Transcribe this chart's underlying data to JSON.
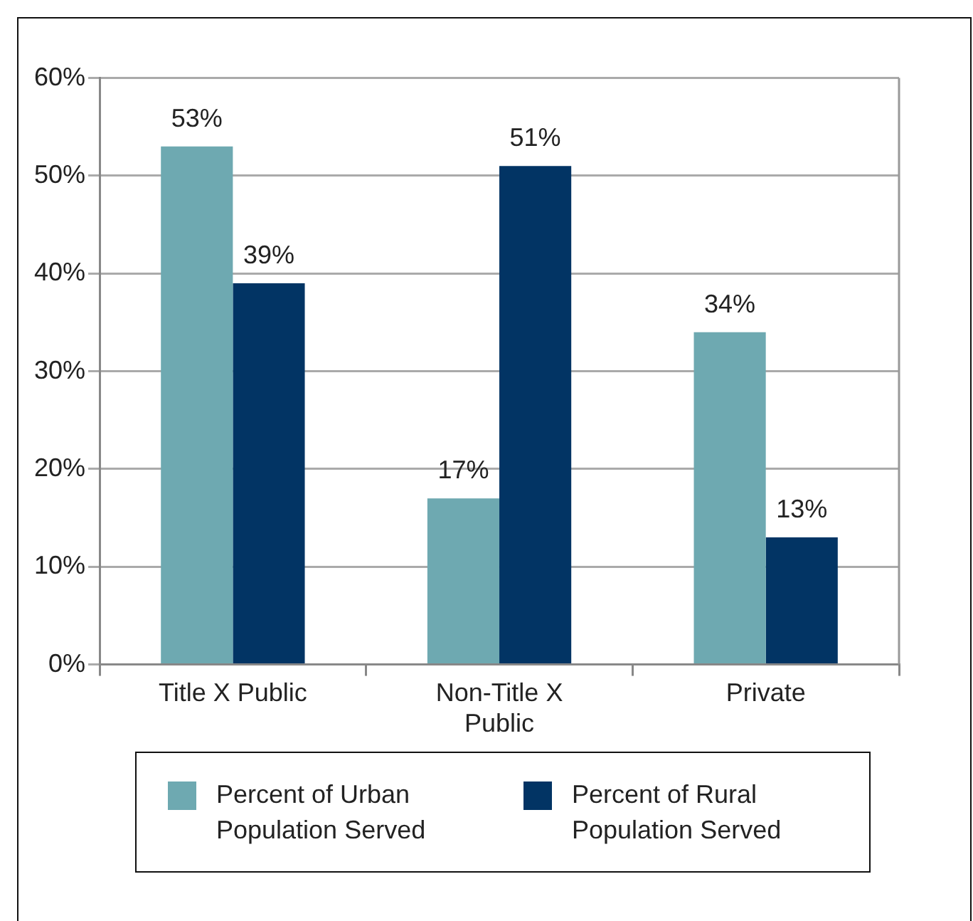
{
  "chart_data": {
    "type": "bar",
    "categories": [
      "Title X Public",
      "Non-Title X Public",
      "Private"
    ],
    "series": [
      {
        "name": "Percent of Urban Population Served",
        "color": "#6ea9b1",
        "values": [
          53,
          17,
          34
        ],
        "value_labels": [
          "53%",
          "17%",
          "34%"
        ]
      },
      {
        "name": "Percent of Rural Population Served",
        "color": "#023464",
        "values": [
          39,
          51,
          13
        ],
        "value_labels": [
          "39%",
          "51%",
          "13%"
        ]
      }
    ],
    "ylim": [
      0,
      60
    ],
    "yticks": [
      {
        "value": 0,
        "label": "0%"
      },
      {
        "value": 10,
        "label": "10%"
      },
      {
        "value": 20,
        "label": "20%"
      },
      {
        "value": 30,
        "label": "30%"
      },
      {
        "value": 40,
        "label": "40%"
      },
      {
        "value": 50,
        "label": "50%"
      },
      {
        "value": 60,
        "label": "60%"
      }
    ],
    "grid": "y",
    "legend": "bottom"
  }
}
